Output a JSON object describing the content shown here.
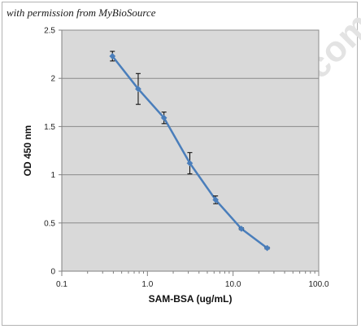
{
  "header": {
    "permission_text": "with permission from MyBioSource"
  },
  "watermark": {
    "text": "MyBioSource.com"
  },
  "chart_data": {
    "type": "line",
    "xlabel": "SAM-BSA (ug/mL)",
    "ylabel": "OD 450 nm",
    "xscale": "log",
    "xlim": [
      0.1,
      100.0
    ],
    "ylim": [
      0,
      2.5
    ],
    "x_ticks": [
      0.1,
      1.0,
      10.0,
      100.0
    ],
    "x_tick_labels": [
      "0.1",
      "1.0",
      "10.0",
      "100.0"
    ],
    "y_ticks": [
      0,
      0.5,
      1,
      1.5,
      2,
      2.5
    ],
    "y_tick_labels": [
      "0",
      "0.5",
      "1",
      "1.5",
      "2",
      "2.5"
    ],
    "grid": "horizontal",
    "plot_background": "#d9d9d9",
    "line_color": "#4a7ebb",
    "series": [
      {
        "x": [
          0.39,
          0.78,
          1.56,
          3.125,
          6.25,
          12.5,
          25
        ],
        "y": [
          2.23,
          1.89,
          1.59,
          1.12,
          0.74,
          0.44,
          0.24
        ],
        "error": [
          0.05,
          0.16,
          0.06,
          0.11,
          0.04,
          0.01,
          0.01
        ]
      }
    ]
  }
}
